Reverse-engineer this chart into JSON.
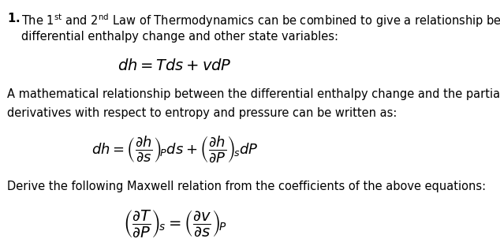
{
  "bg_color": "#ffffff",
  "text_color": "#000000",
  "fig_width": 6.34,
  "fig_height": 3.12,
  "dpi": 100,
  "line1_bold": "1.",
  "line1_normal": " The 1",
  "line1_super1": "st",
  "line1_cont": " and 2",
  "line1_super2": "nd",
  "line1_end": " Law of Thermodynamics can be combined to give a relationship between",
  "line2": "differential enthalpy change and other state variables:",
  "eq1": "$dh = Tds + vdP$",
  "line3": "A mathematical relationship between the differential enthalpy change and the partial",
  "line4": "derivatives with respect to entropy and pressure can be written as:",
  "eq2": "$dh = \\left(\\dfrac{\\partial h}{\\partial s}\\right)_{\\!P} ds + \\left(\\dfrac{\\partial h}{\\partial P}\\right)_{\\!s} dP$",
  "line5": "Derive the following Maxwell relation from the coefficients of the above equations:",
  "eq3": "$\\left(\\dfrac{\\partial T}{\\partial P}\\right)_{\\!s} = \\left(\\dfrac{\\partial v}{\\partial s}\\right)_{\\!P}$",
  "font_size_text": 10.5,
  "font_size_eq": 13,
  "font_size_eq_large": 14
}
